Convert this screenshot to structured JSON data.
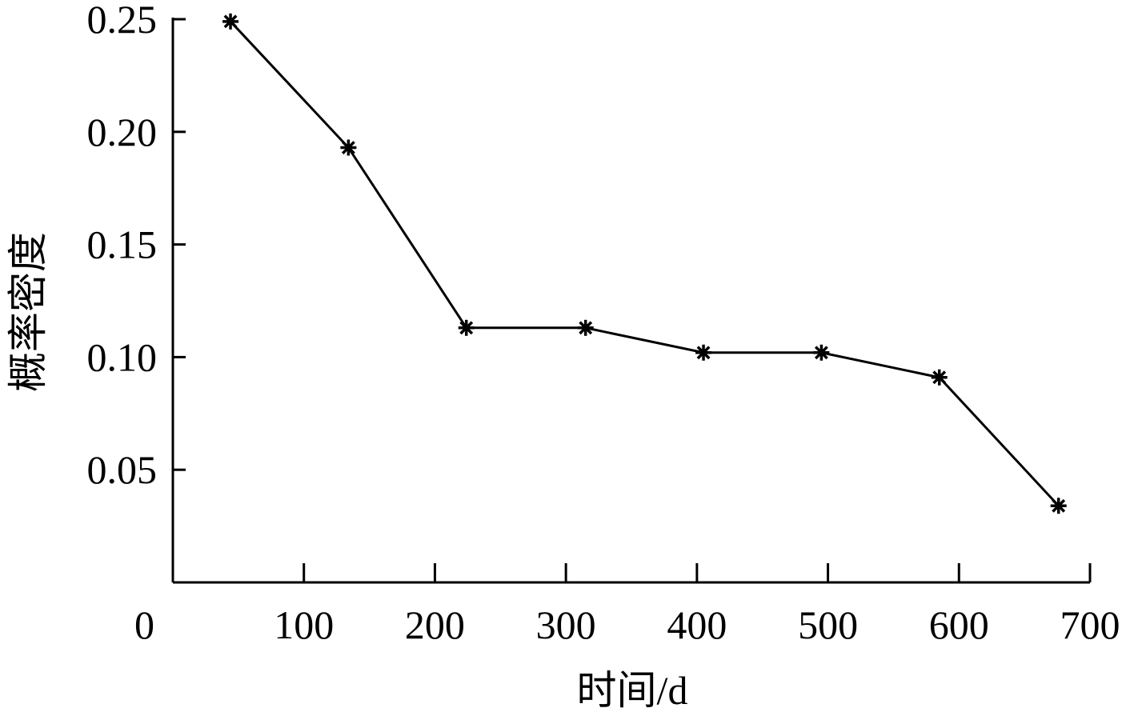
{
  "chart_data": {
    "type": "line",
    "xlabel": "时间/d",
    "ylabel": "概率密度",
    "xlim": [
      0,
      700
    ],
    "ylim": [
      0.0,
      0.25
    ],
    "x_ticks": [
      0,
      100,
      200,
      300,
      400,
      500,
      600,
      700
    ],
    "x_tick_labels": [
      "0",
      "100",
      "200",
      "300",
      "400",
      "500",
      "600",
      "700"
    ],
    "y_ticks": [
      0.05,
      0.1,
      0.15,
      0.2,
      0.25
    ],
    "y_tick_labels": [
      "0.05",
      "0.10",
      "0.15",
      "0.20",
      "0.25"
    ],
    "grid": false,
    "marker": "asterisk",
    "series": [
      {
        "x": [
          44,
          134,
          224,
          315,
          405,
          495,
          585,
          676
        ],
        "values": [
          0.249,
          0.193,
          0.113,
          0.113,
          0.102,
          0.102,
          0.091,
          0.034
        ]
      }
    ]
  }
}
